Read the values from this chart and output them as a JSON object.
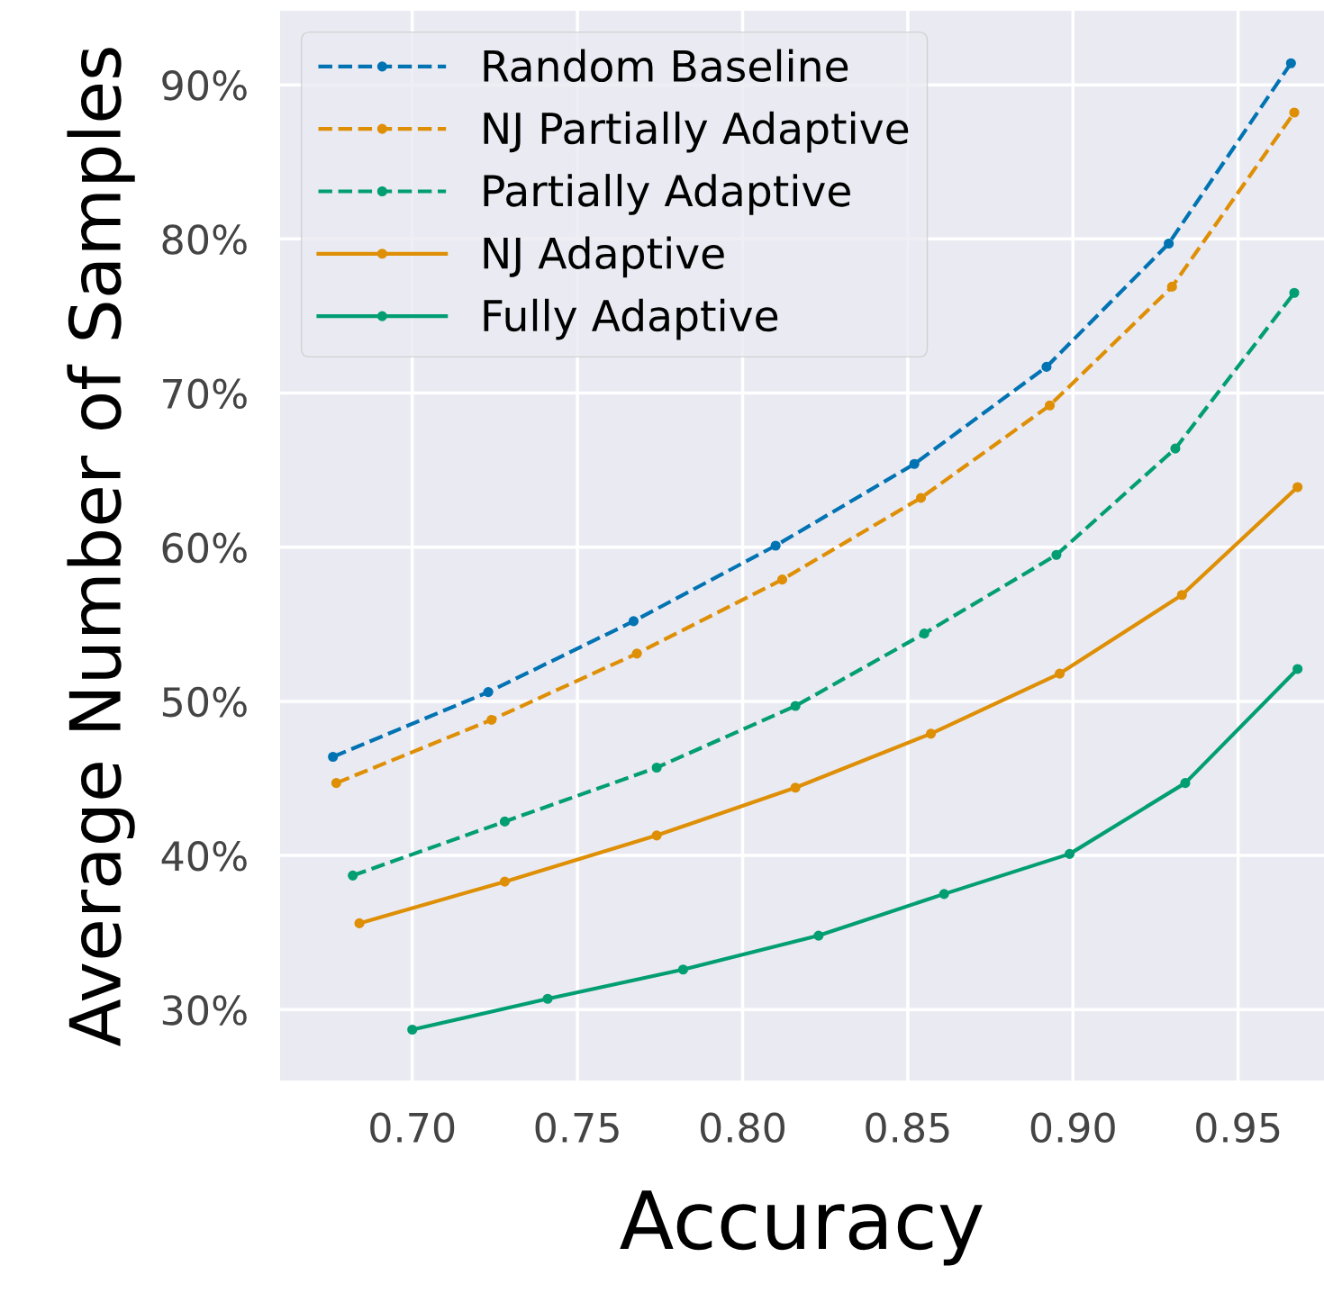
{
  "chart_data": {
    "type": "line",
    "xlabel": "Accuracy",
    "ylabel": "Average Number of Samples",
    "xlim": [
      0.66,
      0.976
    ],
    "ylim": [
      25.4,
      94.8
    ],
    "xticks": [
      {
        "value": 0.7,
        "label": "0.70"
      },
      {
        "value": 0.75,
        "label": "0.75"
      },
      {
        "value": 0.8,
        "label": "0.80"
      },
      {
        "value": 0.85,
        "label": "0.85"
      },
      {
        "value": 0.9,
        "label": "0.90"
      },
      {
        "value": 0.95,
        "label": "0.95"
      }
    ],
    "yticks": [
      {
        "value": 30,
        "label": "30%"
      },
      {
        "value": 40,
        "label": "40%"
      },
      {
        "value": 50,
        "label": "50%"
      },
      {
        "value": 60,
        "label": "60%"
      },
      {
        "value": 70,
        "label": "70%"
      },
      {
        "value": 80,
        "label": "80%"
      },
      {
        "value": 90,
        "label": "90%"
      }
    ],
    "grid": true,
    "legend": "top left",
    "marker": "circle",
    "series": [
      {
        "name": "Random Baseline",
        "color": "#0173b2",
        "line_style": "dashed",
        "x": [
          0.676,
          0.723,
          0.767,
          0.81,
          0.852,
          0.892,
          0.929,
          0.966
        ],
        "values": [
          46.4,
          50.6,
          55.2,
          60.1,
          65.4,
          71.7,
          79.7,
          91.4
        ]
      },
      {
        "name": "NJ Partially Adaptive",
        "color": "#de8f05",
        "line_style": "dashed",
        "x": [
          0.677,
          0.724,
          0.768,
          0.812,
          0.854,
          0.893,
          0.93,
          0.967
        ],
        "values": [
          44.7,
          48.8,
          53.1,
          57.9,
          63.2,
          69.2,
          76.9,
          88.2
        ]
      },
      {
        "name": "Partially Adaptive",
        "color": "#029e73",
        "line_style": "dashed",
        "x": [
          0.682,
          0.728,
          0.774,
          0.816,
          0.855,
          0.895,
          0.931,
          0.967
        ],
        "values": [
          38.7,
          42.2,
          45.7,
          49.7,
          54.4,
          59.5,
          66.4,
          76.5
        ]
      },
      {
        "name": "NJ Adaptive",
        "color": "#de8f05",
        "line_style": "solid",
        "x": [
          0.684,
          0.728,
          0.774,
          0.816,
          0.857,
          0.896,
          0.933,
          0.968
        ],
        "values": [
          35.6,
          38.3,
          41.3,
          44.4,
          47.9,
          51.8,
          56.9,
          63.9
        ]
      },
      {
        "name": "Fully Adaptive",
        "color": "#029e73",
        "line_style": "solid",
        "x": [
          0.7,
          0.741,
          0.782,
          0.823,
          0.861,
          0.899,
          0.934,
          0.968
        ],
        "values": [
          28.7,
          30.7,
          32.6,
          34.8,
          37.5,
          40.1,
          44.7,
          52.1
        ]
      }
    ]
  }
}
